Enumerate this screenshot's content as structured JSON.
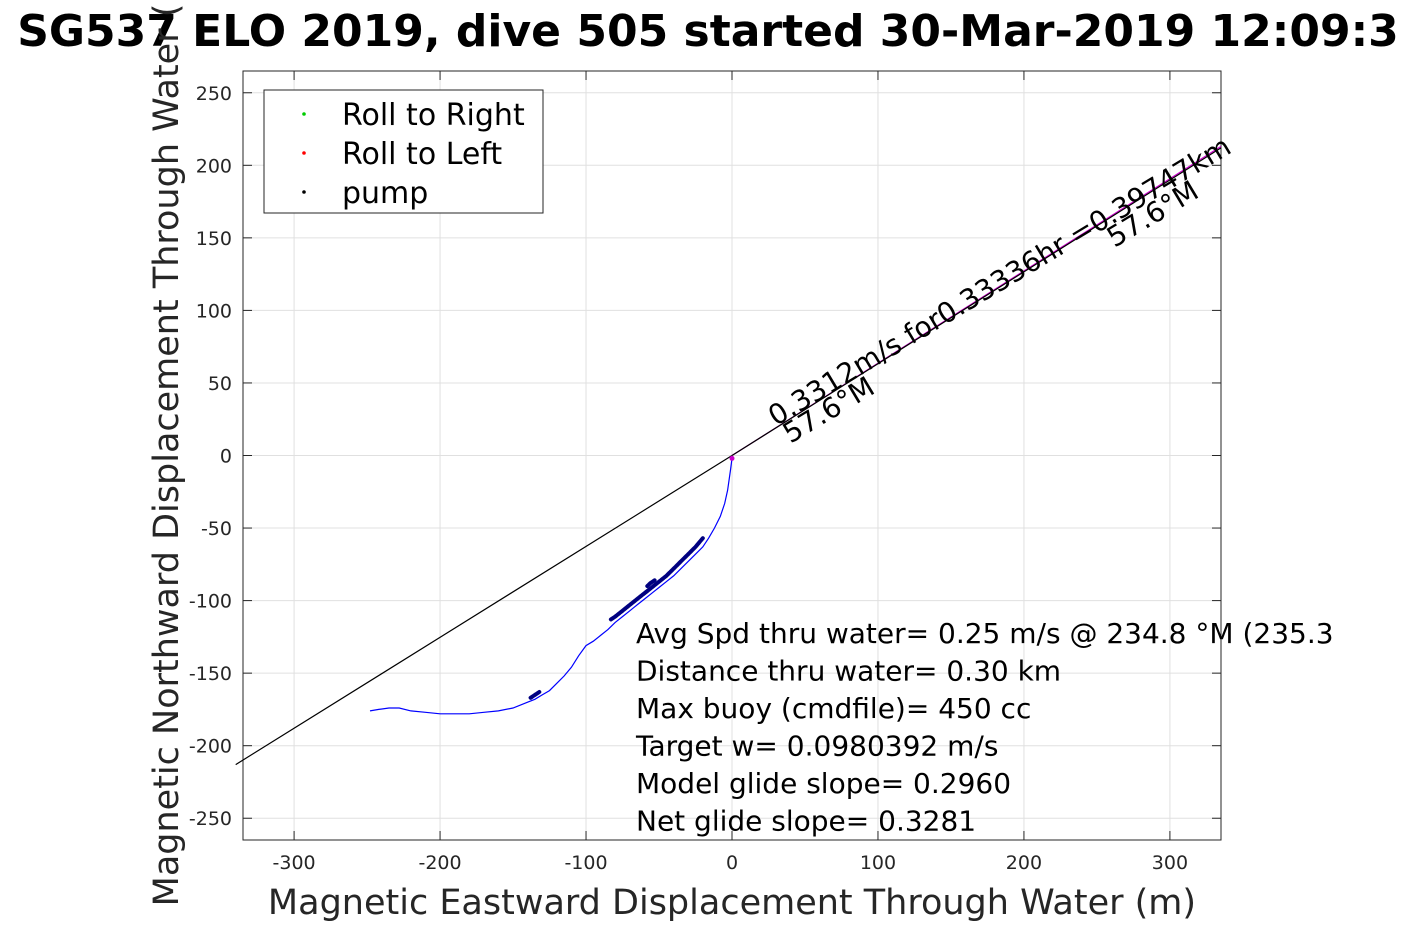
{
  "chart_data": {
    "type": "line",
    "title": "SG537 ELO 2019, dive 505 started 30-Mar-2019 12:09:3",
    "xlabel": "Magnetic Eastward Displacement Through Water (m)",
    "ylabel": "Magnetic Northward Displacement Through Water (",
    "xlim": [
      -335,
      335
    ],
    "ylim": [
      -265,
      265
    ],
    "xticks": [
      -300,
      -200,
      -100,
      0,
      100,
      200,
      300
    ],
    "yticks": [
      250,
      200,
      150,
      100,
      50,
      0,
      -50,
      -100,
      -150,
      -200,
      -250
    ],
    "xtick_labels": [
      "-300",
      "-200",
      "-100",
      "0",
      "100",
      "200",
      "300"
    ],
    "ytick_labels": [
      "250",
      "200",
      "150",
      "100",
      "50",
      "0",
      "-50",
      "-100",
      "-150",
      "-200",
      "-250"
    ],
    "grid": true,
    "legend_position": "top-left",
    "legend": [
      {
        "label": "Roll to Right",
        "color": "#00cc00"
      },
      {
        "label": "Roll to Left",
        "color": "#ff0000"
      },
      {
        "label": "pump",
        "color": "#000000"
      }
    ],
    "series": [
      {
        "style": "thin-line",
        "color": "#0000ff",
        "x": [
          0,
          -1,
          -3,
          -5,
          -8,
          -12,
          -16,
          -20,
          -25,
          -30,
          -35,
          -40,
          -45,
          -50,
          -55,
          -60,
          -65,
          -70,
          -75,
          -80,
          -85,
          -90,
          -95,
          -100,
          -105,
          -110,
          -115,
          -120,
          -125,
          -130,
          -135,
          -140,
          -150,
          -160,
          -170,
          -180,
          -190,
          -200,
          -210,
          -220,
          -228,
          -235,
          -242,
          -248
        ],
        "y": [
          -2,
          -10,
          -24,
          -33,
          -42,
          -50,
          -57,
          -63,
          -68,
          -73,
          -78,
          -83,
          -87,
          -91,
          -95,
          -99,
          -103,
          -107,
          -111,
          -115,
          -120,
          -124,
          -128,
          -131,
          -138,
          -146,
          -152,
          -157,
          -162,
          -165,
          -168,
          -170,
          -174,
          -176,
          -177,
          -178,
          -178,
          -178,
          -177,
          -176,
          -174,
          -174,
          -175,
          -176
        ]
      },
      {
        "style": "thick-line",
        "color": "#000080",
        "segments": [
          {
            "x": [
              -20,
              -25,
              -30,
              -35,
              -40,
              -45,
              -50,
              -55,
              -60,
              -65,
              -70,
              -75,
              -80,
              -83
            ],
            "y": [
              -57,
              -63,
              -68,
              -73,
              -78,
              -83,
              -87,
              -91,
              -95,
              -99,
              -103,
              -107,
              -111,
              -113
            ]
          },
          {
            "x": [
              -132,
              -135,
              -138
            ],
            "y": [
              -163,
              -165,
              -167
            ]
          },
          {
            "x": [
              -53,
              -56,
              -58
            ],
            "y": [
              -86,
              -88,
              -90
            ]
          }
        ]
      },
      {
        "style": "thin-line",
        "color": "#000000",
        "x": [
          0,
          -340
        ],
        "y": [
          0,
          -213
        ]
      },
      {
        "style": "thin-line",
        "color": "#cc00cc",
        "x": [
          0,
          335
        ],
        "y": [
          0,
          213
        ]
      },
      {
        "style": "thin-line",
        "color": "#000000",
        "x": [
          0,
          335
        ],
        "y": [
          0,
          212
        ]
      }
    ],
    "rotated_annotations": [
      {
        "text": "0.3312m/s for0.33336hr =0.39747km",
        "x": 30,
        "y": 20,
        "angle": -31
      },
      {
        "text": "57.6°M",
        "x": 40,
        "y": 8,
        "angle": -31
      },
      {
        "text": "57.6°M",
        "x": 262,
        "y": 143,
        "angle": -31
      }
    ],
    "info_lines": [
      "Avg Spd thru water=  0.25 m/s @ 234.8 °M (235.3",
      "Distance thru water=  0.30 km",
      "Max buoy (cmdfile)= 450 cc",
      "Target w= 0.0980392 m/s",
      "Model glide slope= 0.2960",
      "Net glide slope= 0.3281"
    ]
  }
}
